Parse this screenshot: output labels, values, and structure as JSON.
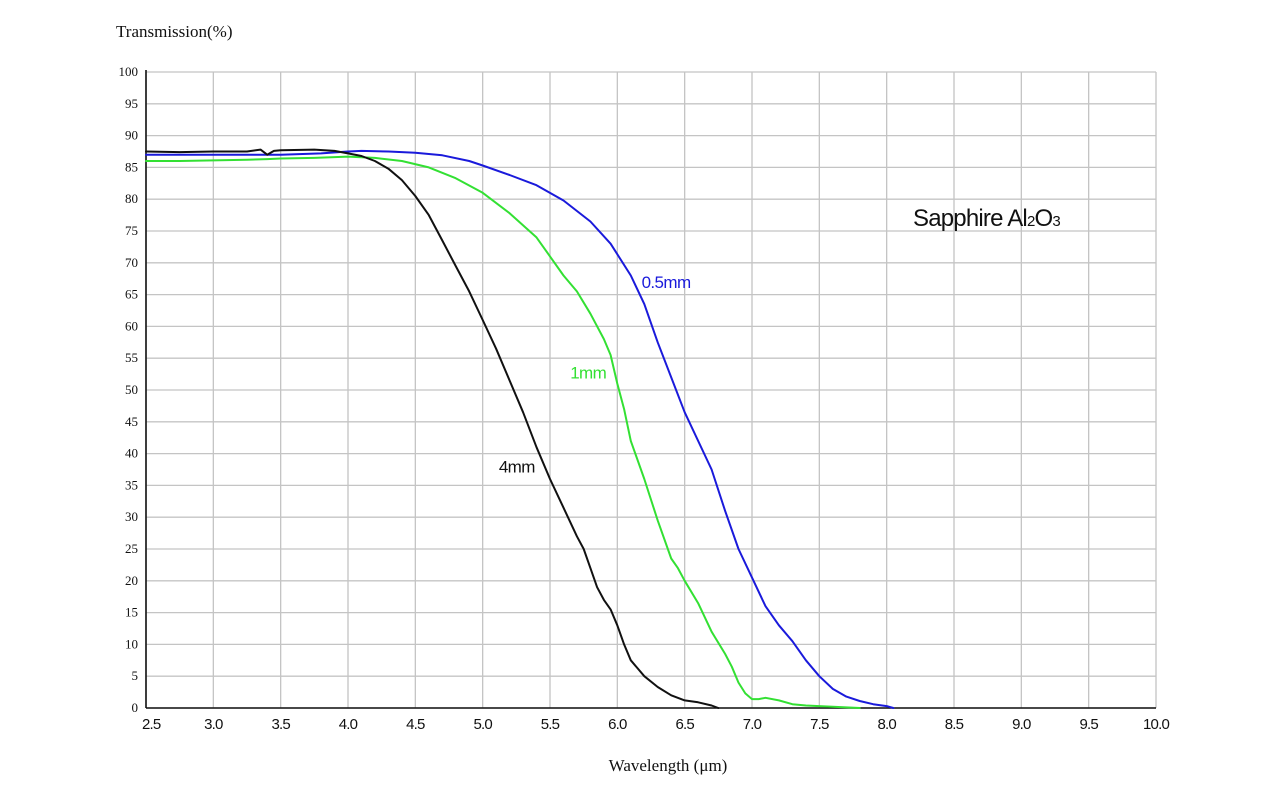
{
  "chart_data": {
    "type": "line",
    "title": "Sapphire Al2O3",
    "title_main": "Sapphire Al",
    "title_sub1": "2",
    "title_mid": "O",
    "title_sub2": "3",
    "xlabel": "Wavelength (μm)",
    "ylabel": "Transmission(%)",
    "xlim": [
      2.5,
      10.0
    ],
    "ylim": [
      0,
      100
    ],
    "grid": true,
    "xticks": [
      "2.5",
      "3.0",
      "3.5",
      "4.0",
      "4.5",
      "5.0",
      "5.5",
      "6.0",
      "6.5",
      "7.0",
      "7.5",
      "8.0",
      "8.5",
      "9.0",
      "9.5",
      "10.0"
    ],
    "yticks": [
      "0",
      "5",
      "10",
      "15",
      "20",
      "25",
      "30",
      "35",
      "40",
      "45",
      "50",
      "55",
      "60",
      "65",
      "70",
      "75",
      "80",
      "85",
      "90",
      "95",
      "100"
    ],
    "series": [
      {
        "name": "0.5mm",
        "color": "#1a1adb",
        "x": [
          2.5,
          3.0,
          3.5,
          3.8,
          4.0,
          4.1,
          4.3,
          4.5,
          4.7,
          4.9,
          5.0,
          5.2,
          5.4,
          5.6,
          5.8,
          5.95,
          6.1,
          6.2,
          6.3,
          6.5,
          6.7,
          6.8,
          6.9,
          7.0,
          7.1,
          7.2,
          7.3,
          7.4,
          7.5,
          7.6,
          7.7,
          7.8,
          7.9,
          8.0,
          8.05
        ],
        "y": [
          87.0,
          87.0,
          87.0,
          87.2,
          87.5,
          87.6,
          87.5,
          87.3,
          86.9,
          86.0,
          85.3,
          83.8,
          82.2,
          79.8,
          76.5,
          73.0,
          68.0,
          63.5,
          57.5,
          46.5,
          37.5,
          31.0,
          25.0,
          20.5,
          16.0,
          13.0,
          10.5,
          7.5,
          5.0,
          3.0,
          1.8,
          1.1,
          0.6,
          0.3,
          0.0
        ]
      },
      {
        "name": "1mm",
        "color": "#33e033",
        "x": [
          2.5,
          2.75,
          3.0,
          3.25,
          3.4,
          3.5,
          3.75,
          4.0,
          4.2,
          4.4,
          4.6,
          4.8,
          5.0,
          5.2,
          5.4,
          5.5,
          5.6,
          5.7,
          5.8,
          5.9,
          5.95,
          6.0,
          6.05,
          6.1,
          6.2,
          6.3,
          6.4,
          6.45,
          6.5,
          6.6,
          6.7,
          6.8,
          6.85,
          6.9,
          6.95,
          7.0,
          7.05,
          7.1,
          7.2,
          7.3,
          7.4,
          7.6,
          7.8
        ],
        "y": [
          86.0,
          86.0,
          86.1,
          86.2,
          86.3,
          86.4,
          86.5,
          86.7,
          86.5,
          86.0,
          85.0,
          83.3,
          81.0,
          77.8,
          74.0,
          71.0,
          68.0,
          65.5,
          62.0,
          58.0,
          55.5,
          51.0,
          47.0,
          42.0,
          36.0,
          29.5,
          23.5,
          22.0,
          20.0,
          16.5,
          12.0,
          8.5,
          6.5,
          4.0,
          2.3,
          1.4,
          1.4,
          1.6,
          1.2,
          0.6,
          0.4,
          0.2,
          0.0
        ]
      },
      {
        "name": "4mm",
        "color": "#111111",
        "x": [
          2.5,
          2.75,
          3.0,
          3.25,
          3.35,
          3.4,
          3.45,
          3.5,
          3.75,
          3.9,
          4.0,
          4.1,
          4.2,
          4.3,
          4.4,
          4.5,
          4.6,
          4.7,
          4.8,
          4.9,
          5.0,
          5.1,
          5.2,
          5.3,
          5.4,
          5.5,
          5.6,
          5.7,
          5.75,
          5.8,
          5.85,
          5.9,
          5.95,
          6.0,
          6.05,
          6.1,
          6.2,
          6.3,
          6.4,
          6.5,
          6.6,
          6.7,
          6.75
        ],
        "y": [
          87.5,
          87.4,
          87.5,
          87.5,
          87.8,
          87.0,
          87.6,
          87.7,
          87.8,
          87.6,
          87.2,
          86.8,
          86.0,
          84.8,
          83.0,
          80.5,
          77.5,
          73.5,
          69.5,
          65.5,
          61.0,
          56.5,
          51.5,
          46.5,
          41.0,
          36.0,
          31.5,
          27.0,
          25.0,
          22.0,
          19.0,
          17.0,
          15.5,
          13.0,
          10.0,
          7.5,
          5.0,
          3.3,
          2.0,
          1.2,
          0.9,
          0.4,
          0.0
        ]
      }
    ],
    "annotations": [
      {
        "text": "0.5mm",
        "x": 6.18,
        "y": 66.0,
        "color": "#1a1adb"
      },
      {
        "text": "1mm",
        "x": 5.65,
        "y": 51.8,
        "color": "#33e033"
      },
      {
        "text": "4mm",
        "x": 5.12,
        "y": 37.0,
        "color": "#111111"
      }
    ]
  }
}
